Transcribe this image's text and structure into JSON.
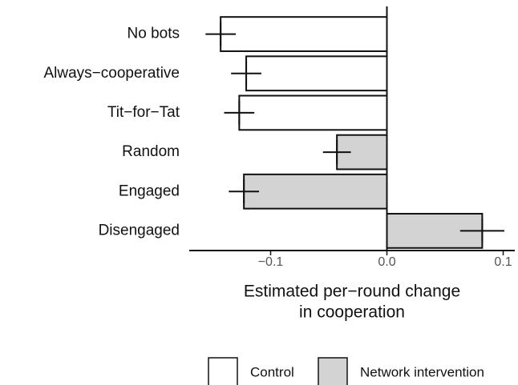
{
  "chart_data": {
    "type": "hbar",
    "categories": [
      "No bots",
      "Always−cooperative",
      "Tit−for−Tat",
      "Random",
      "Engaged",
      "Disengaged"
    ],
    "values": [
      -0.143,
      -0.121,
      -0.127,
      -0.043,
      -0.123,
      0.082
    ],
    "errors": [
      0.013,
      0.013,
      0.013,
      0.012,
      0.013,
      0.019
    ],
    "groups": [
      "Control",
      "Control",
      "Control",
      "Network intervention",
      "Network intervention",
      "Network intervention"
    ],
    "legend": [
      {
        "name": "Control",
        "color": "#ffffff"
      },
      {
        "name": "Network intervention",
        "color": "#d3d3d3"
      }
    ],
    "xlim": [
      -0.17,
      0.11
    ],
    "xticks": [
      {
        "value": -0.1,
        "label": "−0.1"
      },
      {
        "value": 0,
        "label": "0.0"
      },
      {
        "value": 0.1,
        "label": "0.1"
      }
    ],
    "xlabel": [
      "Estimated per−round change",
      "in cooperation"
    ]
  }
}
